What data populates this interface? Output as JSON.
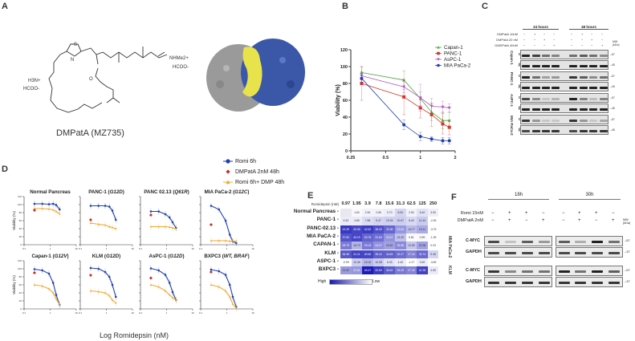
{
  "panels": {
    "A": {
      "letter": "A",
      "compound_name": "DMPatA (MZ735)",
      "structure_labels": {
        "amine_left": "H3N+",
        "counterion_left": "HCOO-",
        "amine_right": "NHMe2+",
        "counterion_right": "HCOO-",
        "thiazole_S": "S",
        "thiazole_N": "N",
        "carbonyl_O": "O"
      },
      "protein_colors": {
        "gray": "#9a9a9a",
        "yellow": "#e8e34a",
        "blue": "#3b57a8"
      }
    },
    "B": {
      "letter": "B"
    },
    "C": {
      "letter": "C",
      "timepoints": [
        "24 hours",
        "48 hours"
      ],
      "treatment_rows": [
        {
          "label": "DMPatA 10nM",
          "signs": [
            "−",
            "+",
            "−",
            "−",
            "−",
            "+",
            "−",
            "−"
          ]
        },
        {
          "label": "DMPatA 20 nM",
          "signs": [
            "−",
            "−",
            "+",
            "−",
            "−",
            "−",
            "+",
            "−"
          ]
        },
        {
          "label": "DMDPatA 40nM",
          "signs": [
            "−",
            "−",
            "−",
            "+",
            "−",
            "−",
            "−",
            "+"
          ]
        }
      ],
      "mw_label": "MW (kDa)",
      "cell_lines": [
        "Capan-1",
        "PANC-1",
        "AsPC-1",
        "MIA PaCa-2"
      ],
      "proteins": [
        "C-MYC",
        "β-actin"
      ],
      "mw_markers": [
        "57",
        "45"
      ]
    },
    "D": {
      "letter": "D",
      "legend": [
        {
          "label": "Romi 6h",
          "color": "#1f3fae",
          "marker": "circle"
        },
        {
          "label": "DMPatA 2nM 48h",
          "color": "#cc2a1c",
          "marker": "diamond"
        },
        {
          "label": "Romi 6h+  DMP 48h",
          "color": "#f0a830",
          "marker": "triangle"
        }
      ],
      "xlabel": "Log Romidepsin (nM)",
      "ylabel": "Viability (%)"
    },
    "E": {
      "letter": "E",
      "scale_high": "High",
      "scale_low": "Low"
    },
    "F": {
      "letter": "F",
      "timepoints": [
        "18h",
        "30h"
      ],
      "treatment_rows": [
        {
          "label": "Romi 15nM",
          "signs": [
            "−",
            "+",
            "+",
            "−",
            "−",
            "+",
            "+",
            "−"
          ]
        },
        {
          "label": "DMPatA 2nM",
          "signs": [
            "−",
            "+",
            "−",
            "+",
            "−",
            "+",
            "−",
            "+"
          ]
        }
      ],
      "mw_label": "MW (kDa)",
      "cell_lines": [
        "MIA PaCa-2",
        "KLM"
      ],
      "proteins": [
        "C-MYC",
        "GAPDH"
      ],
      "mw_markers": [
        "57",
        "37"
      ]
    }
  },
  "chart_data": [
    {
      "id": "B",
      "type": "line",
      "title": "",
      "xlabel": "Log DMPatA (nM)",
      "ylabel": "Viability (%)",
      "xscale": "log",
      "xlim": [
        0.25,
        2
      ],
      "ylim": [
        0,
        120
      ],
      "xticks": [
        "0.25",
        "0.5",
        "1",
        "2"
      ],
      "yticks": [
        "0",
        "20",
        "40",
        "60",
        "80",
        "100",
        "120"
      ],
      "legend_position": "top-right",
      "x": [
        0.31,
        0.72,
        1.0,
        1.25,
        1.56,
        1.78
      ],
      "series": [
        {
          "name": "Capan-1",
          "color": "#4aa83a",
          "marker": "triangle-up",
          "values": [
            93,
            84,
            62,
            46,
            36,
            36
          ],
          "errors": [
            7,
            11,
            8,
            10,
            10,
            9
          ]
        },
        {
          "name": "PANC-1",
          "color": "#d3352a",
          "marker": "square",
          "values": [
            80,
            64,
            51,
            43,
            32,
            28
          ],
          "errors": [
            20,
            21,
            12,
            14,
            12,
            9
          ]
        },
        {
          "name": "AsPC-1",
          "color": "#b152c4",
          "marker": "triangle-down",
          "values": [
            89,
            76,
            63,
            53,
            52,
            51
          ],
          "errors": [
            5,
            7,
            16,
            9,
            7,
            5
          ]
        },
        {
          "name": "MIA PaCa-2",
          "color": "#1f3fae",
          "marker": "circle",
          "values": [
            86,
            31,
            17,
            14,
            12,
            12
          ],
          "errors": [
            5,
            6,
            5,
            3,
            4,
            4
          ]
        }
      ]
    },
    {
      "id": "D",
      "type": "line",
      "xlabel": "Log Romidepsin (nM)",
      "ylabel": "Viability (%)",
      "xscale": "log",
      "xlim": [
        0.1,
        10
      ],
      "ylim": [
        0,
        120
      ],
      "xticks": [
        "0.1",
        "1",
        "10"
      ],
      "yticks": [
        "0",
        "20",
        "40",
        "60",
        "80",
        "100",
        "120"
      ],
      "x": [
        0.25,
        0.5,
        0.9,
        1.3,
        1.7,
        2.3
      ],
      "subplots": [
        {
          "title": "Normal Pancreas",
          "title_italic": "",
          "romi": [
            102,
            102,
            101,
            102,
            99,
            88
          ],
          "dmpata": 86,
          "combo": [
            90,
            90,
            89,
            87,
            83,
            77
          ]
        },
        {
          "title": "PANC-1",
          "title_italic": "G12D",
          "romi": [
            97,
            97,
            97,
            95,
            85,
            62
          ],
          "dmpata": 62,
          "combo": [
            54,
            51,
            49,
            45,
            43,
            40
          ]
        },
        {
          "title": "PANC 02.13",
          "title_italic": "Q61R",
          "romi": [
            83,
            83,
            76,
            68,
            56,
            42
          ],
          "dmpata": 74,
          "combo": [
            45,
            45,
            45,
            44,
            42,
            40
          ]
        },
        {
          "title": "MIA PaCa-2",
          "title_italic": "G12C",
          "romi": [
            97,
            88,
            60,
            25,
            8,
            4
          ],
          "dmpata": 50,
          "combo": [
            10,
            10,
            10,
            9,
            9,
            9
          ]
        },
        {
          "title": "Capan-1",
          "title_italic": "G12V",
          "romi": [
            99,
            96,
            88,
            65,
            35,
            10
          ],
          "dmpata": 90,
          "combo": [
            60,
            57,
            50,
            40,
            25,
            10
          ]
        },
        {
          "title": "KLM",
          "title_italic": "G12D",
          "romi": [
            102,
            100,
            92,
            80,
            60,
            30
          ],
          "dmpata": 84,
          "combo": [
            45,
            43,
            40,
            33,
            22,
            15
          ]
        },
        {
          "title": "AsPC-1",
          "title_italic": "G12D",
          "romi": [
            101,
            96,
            85,
            65,
            42,
            22
          ],
          "dmpata": 77,
          "combo": [
            60,
            55,
            45,
            35,
            28,
            22
          ]
        },
        {
          "title": "BXPC3",
          "title_italic": "WT, BRAF",
          "title_prefix": "WT, ",
          "romi": [
            98,
            94,
            85,
            60,
            30,
            5
          ],
          "dmpata": 92,
          "combo": [
            60,
            55,
            45,
            30,
            12,
            2
          ]
        }
      ]
    },
    {
      "id": "E",
      "type": "heatmap",
      "xlabel": "Romidepsin (nM)",
      "columns": [
        "0.97",
        "1.95",
        "3.9",
        "7.8",
        "15.6",
        "31.3",
        "62.5",
        "125",
        "250"
      ],
      "rows": [
        "Normal Pancreas",
        "PANC-1",
        "PANC-02.13",
        "MIA PaCA-2",
        "CAPAN-1",
        "KLM",
        "ASPC-1",
        "BXPC3"
      ],
      "values": [
        [
          null,
          1.6,
          2.9,
          2.8,
          3.7,
          8.9,
          2.9,
          6.4,
          3.5
        ],
        [
          4.33,
          4.65,
          7.68,
          9.47,
          10.33,
          10.67,
          8.4,
          11.43,
          -2.05
        ],
        [
          43.39,
          40.55,
          42.62,
          38.32,
          33.38,
          22.64,
          14.77,
          18.11,
          -3.79
        ],
        [
          37.6,
          40.19,
          33.76,
          31.6,
          23.47,
          13.29,
          0.81,
          0.99,
          -1.39
        ],
        [
          28.79,
          16.7,
          29.03,
          24.07,
          20.62,
          25.58,
          12.69,
          20.38,
          0.03
        ],
        [
          36.35,
          41.11,
          40.6,
          35.41,
          34.63,
          32.27,
          27.24,
          32.74,
          9.46
        ],
        [
          -0.99,
          10.46,
          15.16,
          10.98,
          6.33,
          4.4,
          -1.27,
          3.69,
          -3.69
        ],
        [
          21.92,
          22.81,
          49.47,
          42.69,
          35.62,
          29.29,
          27.33,
          41.35,
          4.69
        ]
      ],
      "colorscale": {
        "high": "#1a1ab0",
        "low": "#ffffff",
        "high_label": "High",
        "low_label": "Low"
      }
    }
  ]
}
